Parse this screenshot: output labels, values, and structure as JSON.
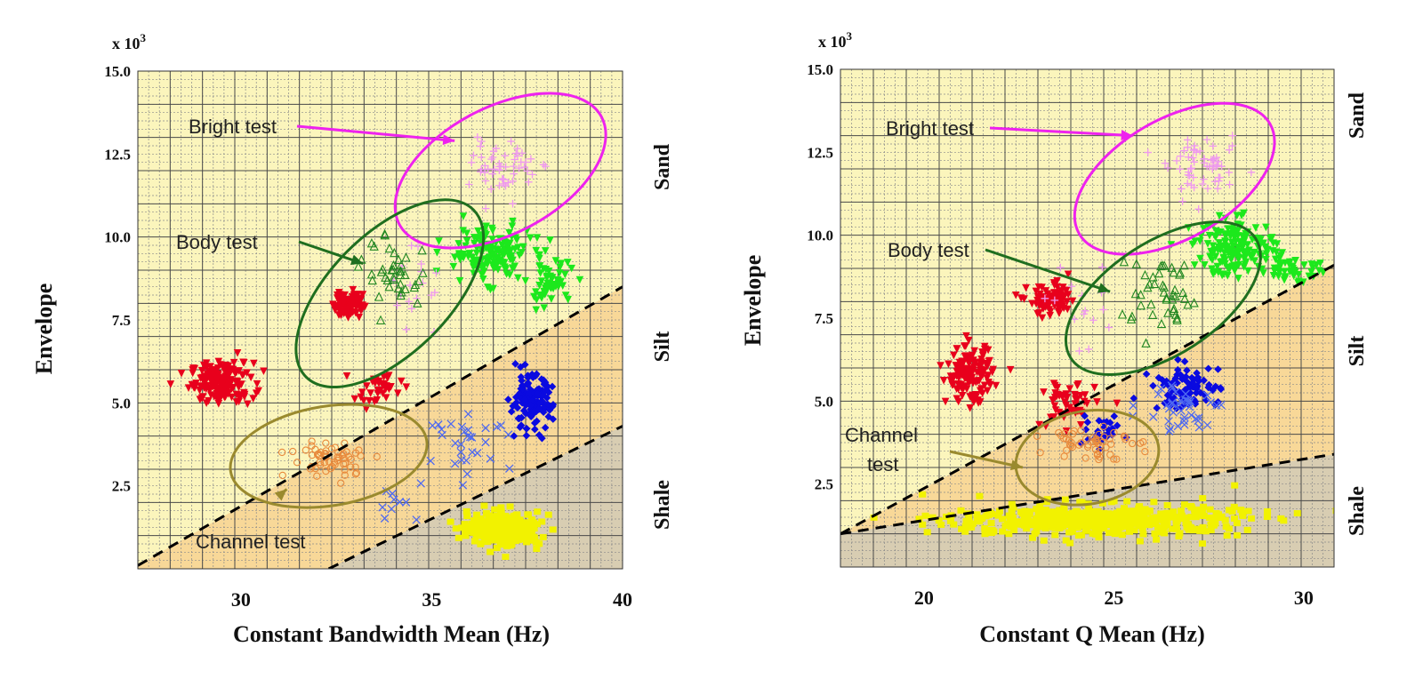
{
  "chart_data": [
    {
      "type": "scatter",
      "xlabel": "Constant Bandwidth Mean (Hz)",
      "ylabel": "Envelope",
      "y_multiplier": "x 10",
      "y_multiplier_exp": "3",
      "xlim": [
        27.3,
        40
      ],
      "ylim": [
        0,
        15.0
      ],
      "xticks": [
        30,
        35,
        40
      ],
      "yticks": [
        2.5,
        5.0,
        7.5,
        10.0,
        12.5,
        15.0
      ],
      "xtick_labels": [
        "30",
        "35",
        "40"
      ],
      "ytick_labels": [
        "2.5",
        "5.0",
        "7.5",
        "10.0",
        "12.5",
        "15.0"
      ],
      "grid": true,
      "facies_labels": [
        "Sand",
        "Silt",
        "Shale"
      ],
      "boundaries": [
        {
          "from": [
            27.3,
            0.1
          ],
          "to": [
            40,
            8.5
          ]
        },
        {
          "from": [
            32.3,
            0
          ],
          "to": [
            40,
            4.3
          ]
        }
      ],
      "annotations": [
        {
          "text": "Bright test",
          "ellipse": {
            "cx": 36.8,
            "cy": 12.0,
            "rx": 3.0,
            "ry": 1.9,
            "angle_deg": -28
          },
          "color": "#ee22ee",
          "arrow_to": [
            35.6,
            12.9
          ]
        },
        {
          "text": "Body test",
          "ellipse": {
            "cx": 33.9,
            "cy": 8.3,
            "rx": 3.1,
            "ry": 1.8,
            "angle_deg": -45
          },
          "color": "#1f6e1f",
          "arrow_to": [
            33.2,
            9.2
          ]
        },
        {
          "text": "Channel test",
          "ellipse": {
            "cx": 32.3,
            "cy": 3.4,
            "rx": 2.6,
            "ry": 1.5,
            "angle_deg": -9
          },
          "color": "#9a8a2e",
          "arrow_to": [
            31.2,
            2.4
          ]
        }
      ],
      "series": [
        {
          "shape": "downtri",
          "color": "#e8001c",
          "cx": 29.5,
          "cy": 5.6,
          "sx": 0.75,
          "sy": 0.55,
          "n": 170
        },
        {
          "shape": "downtri",
          "color": "#e8001c",
          "cx": 32.8,
          "cy": 8.0,
          "sx": 0.35,
          "sy": 0.4,
          "n": 80
        },
        {
          "shape": "downtri",
          "color": "#e8001c",
          "cx": 33.6,
          "cy": 5.4,
          "sx": 0.55,
          "sy": 0.45,
          "n": 35
        },
        {
          "shape": "downtri",
          "color": "#1ce81c",
          "cx": 36.5,
          "cy": 9.5,
          "sx": 1.0,
          "sy": 0.75,
          "n": 150
        },
        {
          "shape": "downtri",
          "color": "#1ce81c",
          "cx": 38.1,
          "cy": 8.6,
          "sx": 0.55,
          "sy": 0.6,
          "n": 60
        },
        {
          "shape": "plus",
          "color": "#ee99ee",
          "cx": 36.9,
          "cy": 12.1,
          "sx": 0.75,
          "sy": 0.75,
          "n": 55
        },
        {
          "shape": "plus",
          "color": "#ee99ee",
          "cx": 34.6,
          "cy": 8.4,
          "sx": 0.6,
          "sy": 1.3,
          "n": 18
        },
        {
          "shape": "tri",
          "color": "#228822",
          "cx": 34.1,
          "cy": 8.9,
          "sx": 0.8,
          "sy": 1.0,
          "n": 40
        },
        {
          "shape": "diamond",
          "color": "#0a0ae0",
          "cx": 37.6,
          "cy": 5.0,
          "sx": 0.5,
          "sy": 0.75,
          "n": 130
        },
        {
          "shape": "x",
          "color": "#4f6af0",
          "cx": 36.0,
          "cy": 3.8,
          "sx": 1.0,
          "sy": 0.7,
          "n": 30
        },
        {
          "shape": "x",
          "color": "#4f6af0",
          "cx": 34.1,
          "cy": 2.0,
          "sx": 0.7,
          "sy": 0.6,
          "n": 10
        },
        {
          "shape": "circle",
          "color": "#e88a3c",
          "cx": 32.4,
          "cy": 3.3,
          "sx": 1.0,
          "sy": 0.5,
          "n": 60
        },
        {
          "shape": "square",
          "color": "#f2f200",
          "cx": 36.9,
          "cy": 1.2,
          "sx": 0.85,
          "sy": 0.45,
          "n": 300
        }
      ]
    },
    {
      "type": "scatter",
      "xlabel": "Constant Q Mean (Hz)",
      "ylabel": "Envelope",
      "y_multiplier": "x 10",
      "y_multiplier_exp": "3",
      "xlim": [
        17.8,
        30.8
      ],
      "ylim": [
        0,
        15.0
      ],
      "xticks": [
        20,
        25,
        30
      ],
      "yticks": [
        2.5,
        5.0,
        7.5,
        10.0,
        12.5,
        15.0
      ],
      "xtick_labels": [
        "20",
        "25",
        "30"
      ],
      "ytick_labels": [
        "2.5",
        "5.0",
        "7.5",
        "10.0",
        "12.5",
        "15.0"
      ],
      "grid": true,
      "facies_labels": [
        "Sand",
        "Silt",
        "Shale"
      ],
      "boundaries": [
        {
          "from": [
            17.8,
            1.0
          ],
          "to": [
            30.8,
            9.1
          ]
        },
        {
          "from": [
            17.8,
            1.0
          ],
          "to": [
            30.8,
            3.4
          ]
        }
      ],
      "annotations": [
        {
          "text": "Bright test",
          "ellipse": {
            "cx": 26.6,
            "cy": 11.7,
            "rx": 2.9,
            "ry": 1.8,
            "angle_deg": -30
          },
          "color": "#ee22ee",
          "arrow_to": [
            25.5,
            13.0
          ]
        },
        {
          "text": "Body test",
          "ellipse": {
            "cx": 26.3,
            "cy": 8.1,
            "rx": 2.9,
            "ry": 1.7,
            "angle_deg": -33
          },
          "color": "#1f6e1f",
          "arrow_to": [
            24.9,
            8.3
          ]
        },
        {
          "text": "Channel test",
          "ellipse": {
            "cx": 24.3,
            "cy": 3.3,
            "rx": 1.9,
            "ry": 1.4,
            "angle_deg": -10
          },
          "color": "#9a8a2e",
          "arrow_to": [
            22.6,
            3.0
          ]
        }
      ],
      "series": [
        {
          "shape": "downtri",
          "color": "#e8001c",
          "cx": 21.2,
          "cy": 5.8,
          "sx": 0.55,
          "sy": 0.75,
          "n": 150
        },
        {
          "shape": "downtri",
          "color": "#e8001c",
          "cx": 23.4,
          "cy": 8.0,
          "sx": 0.6,
          "sy": 0.45,
          "n": 80
        },
        {
          "shape": "downtri",
          "color": "#e8001c",
          "cx": 23.8,
          "cy": 4.9,
          "sx": 0.65,
          "sy": 0.65,
          "n": 55
        },
        {
          "shape": "downtri",
          "color": "#1ce81c",
          "cx": 28.2,
          "cy": 9.6,
          "sx": 1.0,
          "sy": 0.75,
          "n": 170
        },
        {
          "shape": "downtri",
          "color": "#1ce81c",
          "cx": 29.8,
          "cy": 9.0,
          "sx": 0.6,
          "sy": 0.4,
          "n": 40
        },
        {
          "shape": "plus",
          "color": "#ee99ee",
          "cx": 27.4,
          "cy": 12.0,
          "sx": 0.9,
          "sy": 0.75,
          "n": 60
        },
        {
          "shape": "plus",
          "color": "#ee99ee",
          "cx": 24.2,
          "cy": 7.4,
          "sx": 1.0,
          "sy": 1.2,
          "n": 15
        },
        {
          "shape": "tri",
          "color": "#228822",
          "cx": 26.3,
          "cy": 8.2,
          "sx": 1.0,
          "sy": 1.1,
          "n": 45
        },
        {
          "shape": "diamond",
          "color": "#0a0ae0",
          "cx": 26.9,
          "cy": 5.4,
          "sx": 0.8,
          "sy": 0.6,
          "n": 80
        },
        {
          "shape": "diamond",
          "color": "#0a0ae0",
          "cx": 24.6,
          "cy": 4.1,
          "sx": 0.6,
          "sy": 0.35,
          "n": 30
        },
        {
          "shape": "x",
          "color": "#4f6af0",
          "cx": 26.8,
          "cy": 4.8,
          "sx": 1.0,
          "sy": 0.7,
          "n": 40
        },
        {
          "shape": "circle",
          "color": "#e88a3c",
          "cx": 24.4,
          "cy": 3.8,
          "sx": 0.95,
          "sy": 0.5,
          "n": 55
        },
        {
          "shape": "square",
          "color": "#f2f200",
          "cx": 24.5,
          "cy": 1.4,
          "sx": 3.5,
          "sy": 0.45,
          "n": 460
        }
      ]
    }
  ],
  "colors": {
    "sand_fill": "#fbf5bc",
    "silt_fill": "#f8d898",
    "shale_fill": "#d8cdb2",
    "grid_major": "#4a4a4a",
    "grid_minor": "#8a8a8a"
  }
}
